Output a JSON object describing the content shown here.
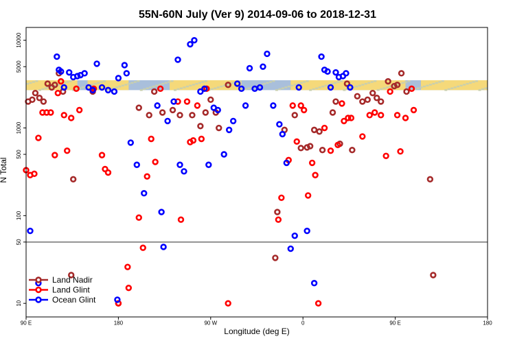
{
  "chart_data": {
    "type": "scatter",
    "title": "55N-60N July (Ver 9)   2014-09-06 to 2018-12-31",
    "xlabel": "Longitude (deg E)",
    "ylabel": "N Total",
    "y_scale": "log",
    "ylim": [
      7,
      14000
    ],
    "x_axis_order": "90E at left wrapping eastward through 180 to 180 at right",
    "x_ticks": [
      {
        "lon": 90,
        "label": "90 E"
      },
      {
        "lon": 180,
        "label": "180"
      },
      {
        "lon": 270,
        "label": "90 W"
      },
      {
        "lon": 360,
        "label": "0"
      },
      {
        "lon": 450,
        "label": "90 E"
      },
      {
        "lon": 540,
        "label": "180"
      }
    ],
    "y_ticks": [
      {
        "value": 10,
        "label": "10"
      },
      {
        "value": 50,
        "label": "50"
      },
      {
        "value": 100,
        "label": "100"
      },
      {
        "value": 500,
        "label": "500"
      },
      {
        "value": 1000,
        "label": "1000"
      },
      {
        "value": 5000,
        "label": "5000"
      },
      {
        "value": 10000,
        "label": "10000"
      }
    ],
    "reference_line": 50,
    "land_ocean_band": {
      "y_low": 2700,
      "y_high": 3500,
      "land_color": "#f5d97a",
      "ocean_color": "#a9bfdb"
    },
    "legend_position": "bottom-left",
    "series": [
      {
        "name": "Land Nadir",
        "color": "#a52a2a",
        "points": [
          [
            92,
            2000
          ],
          [
            96,
            2100
          ],
          [
            99,
            2500
          ],
          [
            103,
            2200
          ],
          [
            107,
            2000
          ],
          [
            111,
            3200
          ],
          [
            115,
            2900
          ],
          [
            118,
            3100
          ],
          [
            122,
            4200
          ],
          [
            126,
            2600
          ],
          [
            134,
            21
          ],
          [
            136,
            260
          ],
          [
            155,
            2600
          ],
          [
            180,
            10
          ],
          [
            200,
            1700
          ],
          [
            210,
            1400
          ],
          [
            215,
            2600
          ],
          [
            223,
            1500
          ],
          [
            233,
            1600
          ],
          [
            240,
            1400
          ],
          [
            252,
            1400
          ],
          [
            260,
            1050
          ],
          [
            265,
            1500
          ],
          [
            270,
            2100
          ],
          [
            275,
            1500
          ],
          [
            278,
            1000
          ],
          [
            287,
            3100
          ],
          [
            333,
            33
          ],
          [
            335,
            110
          ],
          [
            342,
            950
          ],
          [
            352,
            1400
          ],
          [
            358,
            590
          ],
          [
            364,
            600
          ],
          [
            367,
            620
          ],
          [
            371,
            950
          ],
          [
            376,
            910
          ],
          [
            379,
            560
          ],
          [
            389,
            1500
          ],
          [
            392,
            2000
          ],
          [
            396,
            660
          ],
          [
            403,
            3200
          ],
          [
            408,
            560
          ],
          [
            413,
            2300
          ],
          [
            418,
            2000
          ],
          [
            423,
            2100
          ],
          [
            428,
            2500
          ],
          [
            432,
            2200
          ],
          [
            436,
            2000
          ],
          [
            443,
            3400
          ],
          [
            449,
            3000
          ],
          [
            452,
            3100
          ],
          [
            456,
            4200
          ],
          [
            461,
            2600
          ],
          [
            484,
            260
          ],
          [
            487,
            21
          ]
        ]
      },
      {
        "name": "Land Glint",
        "color": "#ff0000",
        "points": [
          [
            90,
            330
          ],
          [
            94,
            290
          ],
          [
            98,
            300
          ],
          [
            102,
            770
          ],
          [
            106,
            1500
          ],
          [
            110,
            1500
          ],
          [
            114,
            1500
          ],
          [
            118,
            490
          ],
          [
            121,
            2500
          ],
          [
            124,
            3400
          ],
          [
            127,
            1400
          ],
          [
            130,
            550
          ],
          [
            134,
            1300
          ],
          [
            139,
            2800
          ],
          [
            142,
            1600
          ],
          [
            156,
            2800
          ],
          [
            164,
            490
          ],
          [
            167,
            340
          ],
          [
            170,
            310
          ],
          [
            180,
            10
          ],
          [
            189,
            26
          ],
          [
            190,
            15
          ],
          [
            200,
            95
          ],
          [
            204,
            43
          ],
          [
            208,
            280
          ],
          [
            212,
            750
          ],
          [
            216,
            410
          ],
          [
            221,
            2800
          ],
          [
            238,
            2000
          ],
          [
            241,
            90
          ],
          [
            247,
            2000
          ],
          [
            250,
            690
          ],
          [
            253,
            720
          ],
          [
            257,
            1800
          ],
          [
            261,
            750
          ],
          [
            266,
            2800
          ],
          [
            287,
            10
          ],
          [
            336,
            90
          ],
          [
            339,
            160
          ],
          [
            346,
            430
          ],
          [
            350,
            1800
          ],
          [
            354,
            700
          ],
          [
            358,
            1800
          ],
          [
            361,
            1600
          ],
          [
            365,
            170
          ],
          [
            369,
            400
          ],
          [
            372,
            290
          ],
          [
            375,
            10
          ],
          [
            381,
            1000
          ],
          [
            387,
            550
          ],
          [
            394,
            640
          ],
          [
            398,
            1900
          ],
          [
            400,
            1200
          ],
          [
            404,
            1300
          ],
          [
            407,
            1300
          ],
          [
            418,
            800
          ],
          [
            425,
            1400
          ],
          [
            430,
            1500
          ],
          [
            436,
            1400
          ],
          [
            441,
            480
          ],
          [
            445,
            2600
          ],
          [
            452,
            1400
          ],
          [
            455,
            540
          ],
          [
            460,
            1300
          ],
          [
            466,
            2800
          ],
          [
            468,
            1600
          ]
        ]
      },
      {
        "name": "Ocean Glint",
        "color": "#0000ff",
        "points": [
          [
            94,
            67
          ],
          [
            102,
            17
          ],
          [
            120,
            6500
          ],
          [
            122,
            4600
          ],
          [
            124,
            4400
          ],
          [
            127,
            2900
          ],
          [
            132,
            4300
          ],
          [
            136,
            3800
          ],
          [
            140,
            3900
          ],
          [
            143,
            4000
          ],
          [
            147,
            4200
          ],
          [
            151,
            2900
          ],
          [
            155,
            2700
          ],
          [
            159,
            5400
          ],
          [
            164,
            2900
          ],
          [
            170,
            2700
          ],
          [
            176,
            2600
          ],
          [
            179,
            11
          ],
          [
            180,
            3700
          ],
          [
            186,
            5200
          ],
          [
            188,
            4200
          ],
          [
            192,
            680
          ],
          [
            198,
            380
          ],
          [
            205,
            180
          ],
          [
            218,
            1800
          ],
          [
            222,
            110
          ],
          [
            224,
            44
          ],
          [
            228,
            1200
          ],
          [
            234,
            2000
          ],
          [
            238,
            6000
          ],
          [
            240,
            380
          ],
          [
            244,
            320
          ],
          [
            250,
            9000
          ],
          [
            254,
            10000
          ],
          [
            260,
            2600
          ],
          [
            264,
            2800
          ],
          [
            268,
            380
          ],
          [
            273,
            1700
          ],
          [
            277,
            1600
          ],
          [
            283,
            500
          ],
          [
            288,
            950
          ],
          [
            292,
            1200
          ],
          [
            296,
            3200
          ],
          [
            300,
            2800
          ],
          [
            304,
            1800
          ],
          [
            308,
            4800
          ],
          [
            313,
            2800
          ],
          [
            318,
            2900
          ],
          [
            321,
            5000
          ],
          [
            325,
            7000
          ],
          [
            331,
            1800
          ],
          [
            337,
            1100
          ],
          [
            340,
            850
          ],
          [
            344,
            400
          ],
          [
            348,
            42
          ],
          [
            352,
            59
          ],
          [
            356,
            2900
          ],
          [
            364,
            67
          ],
          [
            371,
            17
          ],
          [
            378,
            6500
          ],
          [
            381,
            4600
          ],
          [
            384,
            4400
          ],
          [
            387,
            2900
          ],
          [
            392,
            4300
          ],
          [
            395,
            3800
          ],
          [
            399,
            3900
          ],
          [
            402,
            4200
          ],
          [
            406,
            2900
          ]
        ]
      }
    ]
  }
}
